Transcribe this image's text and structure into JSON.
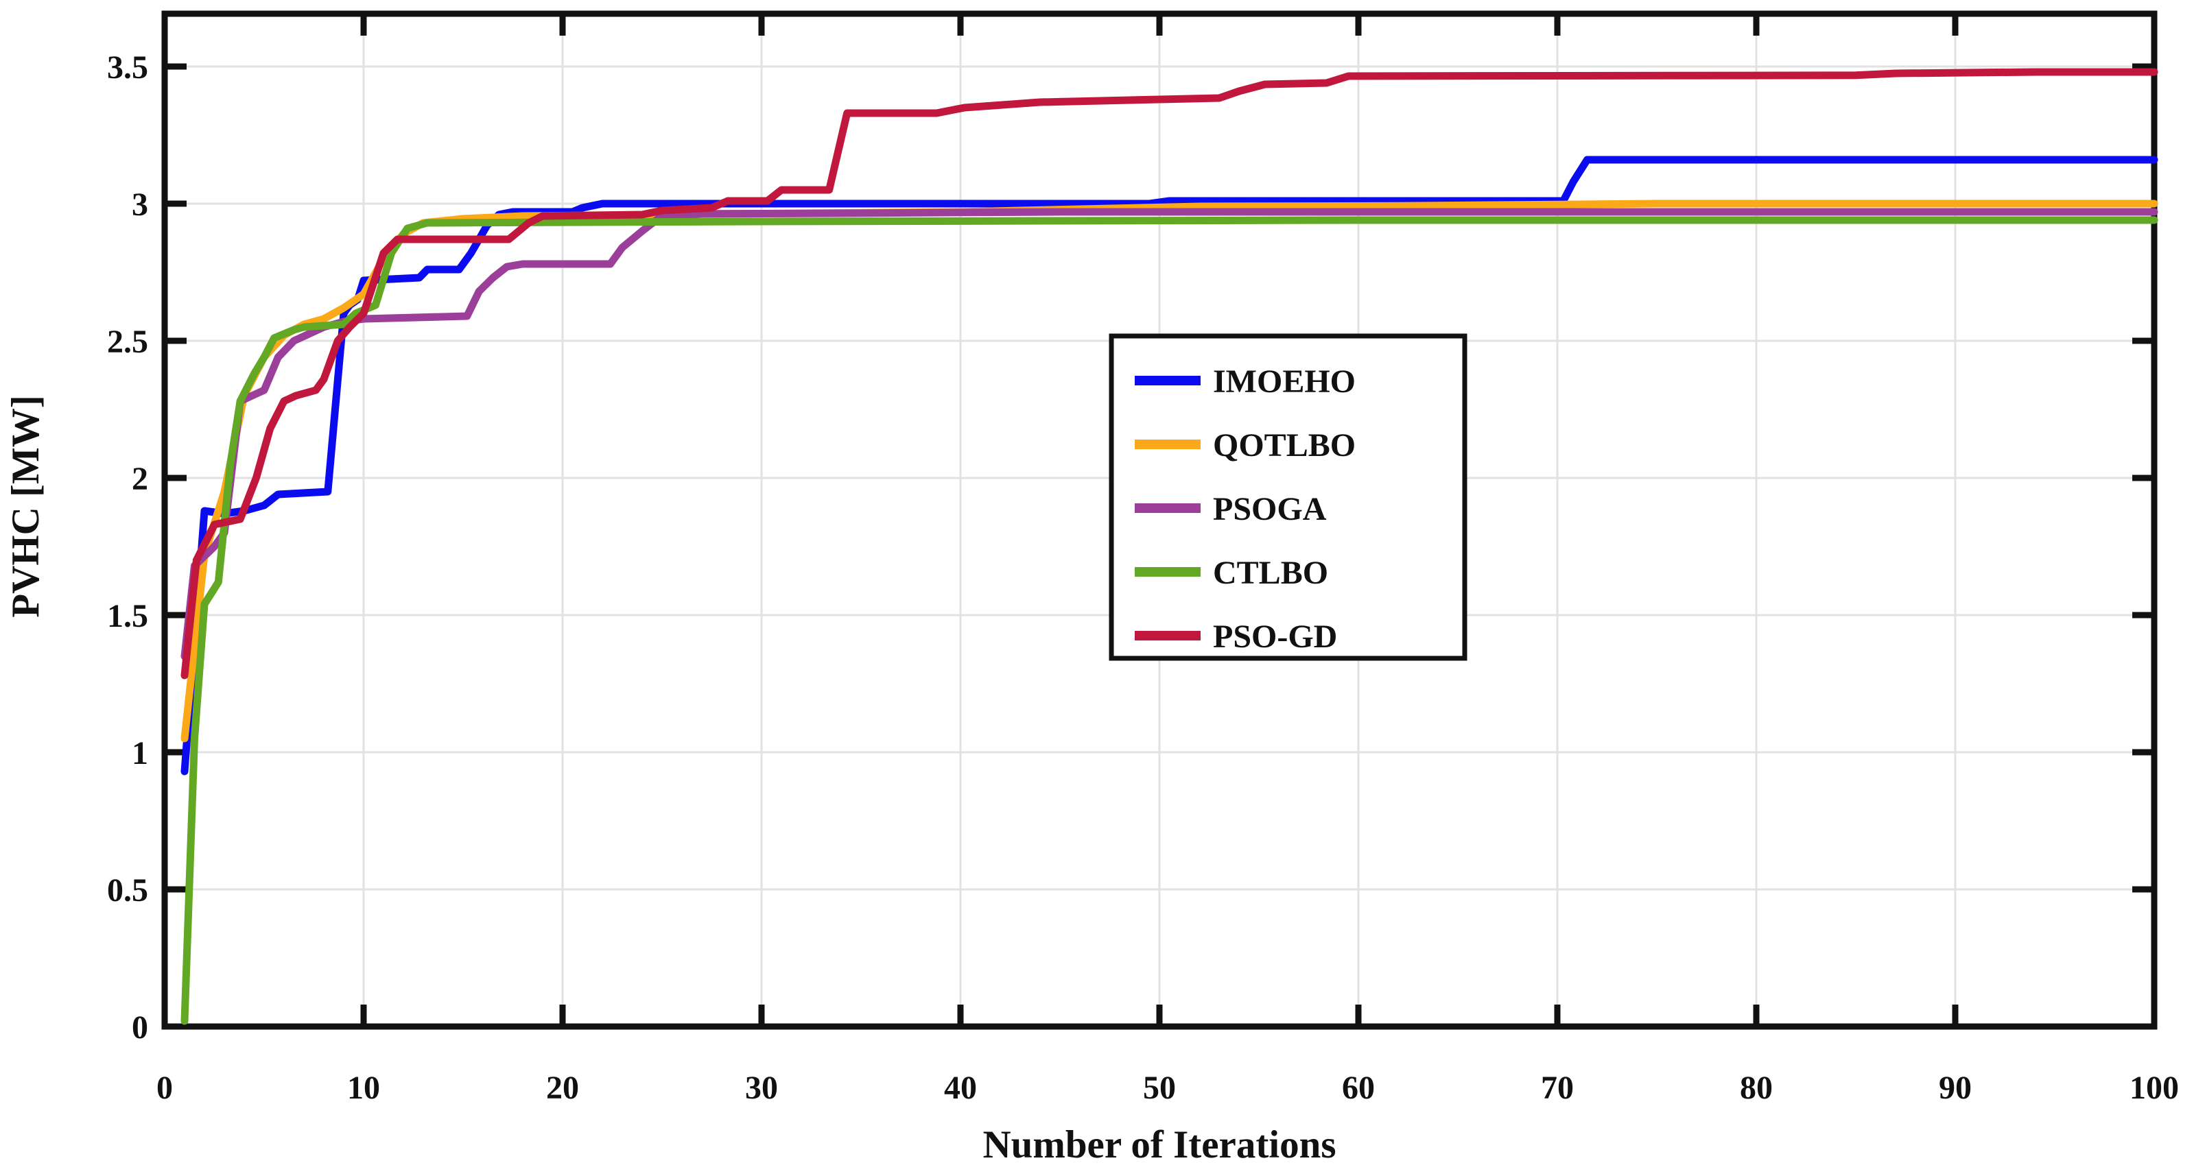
{
  "figure": {
    "background": "#ffffff",
    "title": ""
  },
  "chart_data": {
    "type": "line",
    "title": "",
    "xlabel": "Number of Iterations",
    "ylabel": "PVHC [MW]",
    "xlim": [
      0,
      100
    ],
    "ylim": [
      0,
      3.69
    ],
    "xticks": [
      0,
      10,
      20,
      30,
      40,
      50,
      60,
      70,
      80,
      90,
      100
    ],
    "yticks": [
      0,
      0.5,
      1,
      1.5,
      2,
      2.5,
      3,
      3.5
    ],
    "ytick_labels": [
      "0",
      "0.5",
      "1",
      "1.5",
      "2",
      "2.5",
      "3",
      "3.5"
    ],
    "grid": true,
    "grid_color": "#e2e2e2",
    "axis_color": "#111111",
    "legend": {
      "position": "center-right",
      "background": "#ffffff",
      "border_color": "#111111",
      "entries": [
        "IMOEHO",
        "QOTLBO",
        "PSOGA",
        "CTLBO",
        "PSO-GD"
      ]
    },
    "series": [
      {
        "name": "IMOEHO",
        "color": "#0b0bef",
        "points": [
          [
            1,
            0.93
          ],
          [
            2,
            1.88
          ],
          [
            3,
            1.87
          ],
          [
            4,
            1.88
          ],
          [
            5,
            1.9
          ],
          [
            5.7,
            1.94
          ],
          [
            8.2,
            1.95
          ],
          [
            9,
            2.6
          ],
          [
            9.3,
            2.63
          ],
          [
            9.7,
            2.65
          ],
          [
            10,
            2.72
          ],
          [
            12.8,
            2.73
          ],
          [
            13.2,
            2.76
          ],
          [
            14.8,
            2.76
          ],
          [
            15.4,
            2.82
          ],
          [
            16.2,
            2.92
          ],
          [
            16.8,
            2.96
          ],
          [
            17.5,
            2.97
          ],
          [
            20.5,
            2.97
          ],
          [
            21,
            2.985
          ],
          [
            22,
            3.0
          ],
          [
            49.5,
            3.0
          ],
          [
            50.5,
            3.01
          ],
          [
            70.3,
            3.01
          ],
          [
            70.8,
            3.08
          ],
          [
            71.5,
            3.16
          ],
          [
            100,
            3.16
          ]
        ]
      },
      {
        "name": "QOTLBO",
        "color": "#fba819",
        "points": [
          [
            1,
            1.05
          ],
          [
            2,
            1.72
          ],
          [
            3,
            1.95
          ],
          [
            4,
            2.3
          ],
          [
            5,
            2.44
          ],
          [
            6,
            2.52
          ],
          [
            7,
            2.56
          ],
          [
            8,
            2.58
          ],
          [
            9,
            2.62
          ],
          [
            10,
            2.67
          ],
          [
            11,
            2.8
          ],
          [
            12,
            2.89
          ],
          [
            13,
            2.93
          ],
          [
            15,
            2.945
          ],
          [
            18,
            2.955
          ],
          [
            25,
            2.96
          ],
          [
            32,
            2.965
          ],
          [
            40,
            2.97
          ],
          [
            46,
            2.98
          ],
          [
            52,
            2.99
          ],
          [
            62,
            2.992
          ],
          [
            75,
            3.0
          ],
          [
            100,
            3.0
          ]
        ]
      },
      {
        "name": "PSOGA",
        "color": "#9b3f9b",
        "points": [
          [
            1,
            1.35
          ],
          [
            1.5,
            1.68
          ],
          [
            2.5,
            1.75
          ],
          [
            3,
            1.8
          ],
          [
            3.8,
            2.28
          ],
          [
            5,
            2.32
          ],
          [
            5.7,
            2.44
          ],
          [
            6.5,
            2.5
          ],
          [
            8,
            2.55
          ],
          [
            9,
            2.57
          ],
          [
            10,
            2.58
          ],
          [
            15.2,
            2.59
          ],
          [
            15.8,
            2.68
          ],
          [
            16.5,
            2.73
          ],
          [
            17.2,
            2.77
          ],
          [
            18,
            2.78
          ],
          [
            22.4,
            2.78
          ],
          [
            23,
            2.84
          ],
          [
            24,
            2.9
          ],
          [
            24.8,
            2.945
          ],
          [
            25.5,
            2.955
          ],
          [
            27,
            2.963
          ],
          [
            34,
            2.965
          ],
          [
            45,
            2.97
          ],
          [
            100,
            2.97
          ]
        ]
      },
      {
        "name": "CTLBO",
        "color": "#63a824",
        "points": [
          [
            1,
            0.02
          ],
          [
            1.5,
            1.05
          ],
          [
            2,
            1.54
          ],
          [
            2.7,
            1.62
          ],
          [
            3.3,
            2.05
          ],
          [
            3.8,
            2.28
          ],
          [
            4.5,
            2.38
          ],
          [
            5,
            2.44
          ],
          [
            5.5,
            2.51
          ],
          [
            6.5,
            2.54
          ],
          [
            7,
            2.55
          ],
          [
            9,
            2.56
          ],
          [
            9.6,
            2.6
          ],
          [
            10.6,
            2.63
          ],
          [
            11.4,
            2.82
          ],
          [
            12.2,
            2.91
          ],
          [
            13.2,
            2.93
          ],
          [
            30,
            2.935
          ],
          [
            60,
            2.94
          ],
          [
            100,
            2.94
          ]
        ]
      },
      {
        "name": "PSO-GD",
        "color": "#c1173c",
        "points": [
          [
            1,
            1.28
          ],
          [
            1.6,
            1.7
          ],
          [
            2.5,
            1.83
          ],
          [
            3.8,
            1.85
          ],
          [
            4.6,
            2.0
          ],
          [
            5.3,
            2.18
          ],
          [
            6,
            2.28
          ],
          [
            6.6,
            2.3
          ],
          [
            7.6,
            2.32
          ],
          [
            8,
            2.36
          ],
          [
            8.7,
            2.5
          ],
          [
            9.3,
            2.55
          ],
          [
            10,
            2.6
          ],
          [
            11,
            2.82
          ],
          [
            11.7,
            2.87
          ],
          [
            17.3,
            2.87
          ],
          [
            18.3,
            2.93
          ],
          [
            19,
            2.955
          ],
          [
            24,
            2.96
          ],
          [
            25,
            2.975
          ],
          [
            27.5,
            2.985
          ],
          [
            28.3,
            3.01
          ],
          [
            30.3,
            3.01
          ],
          [
            31,
            3.05
          ],
          [
            33.4,
            3.05
          ],
          [
            34.3,
            3.33
          ],
          [
            38.8,
            3.33
          ],
          [
            40.2,
            3.35
          ],
          [
            44,
            3.37
          ],
          [
            53,
            3.385
          ],
          [
            54,
            3.41
          ],
          [
            55.3,
            3.435
          ],
          [
            58.4,
            3.44
          ],
          [
            59.5,
            3.465
          ],
          [
            85,
            3.468
          ],
          [
            87,
            3.475
          ],
          [
            94,
            3.48
          ],
          [
            100,
            3.48
          ]
        ]
      }
    ]
  }
}
